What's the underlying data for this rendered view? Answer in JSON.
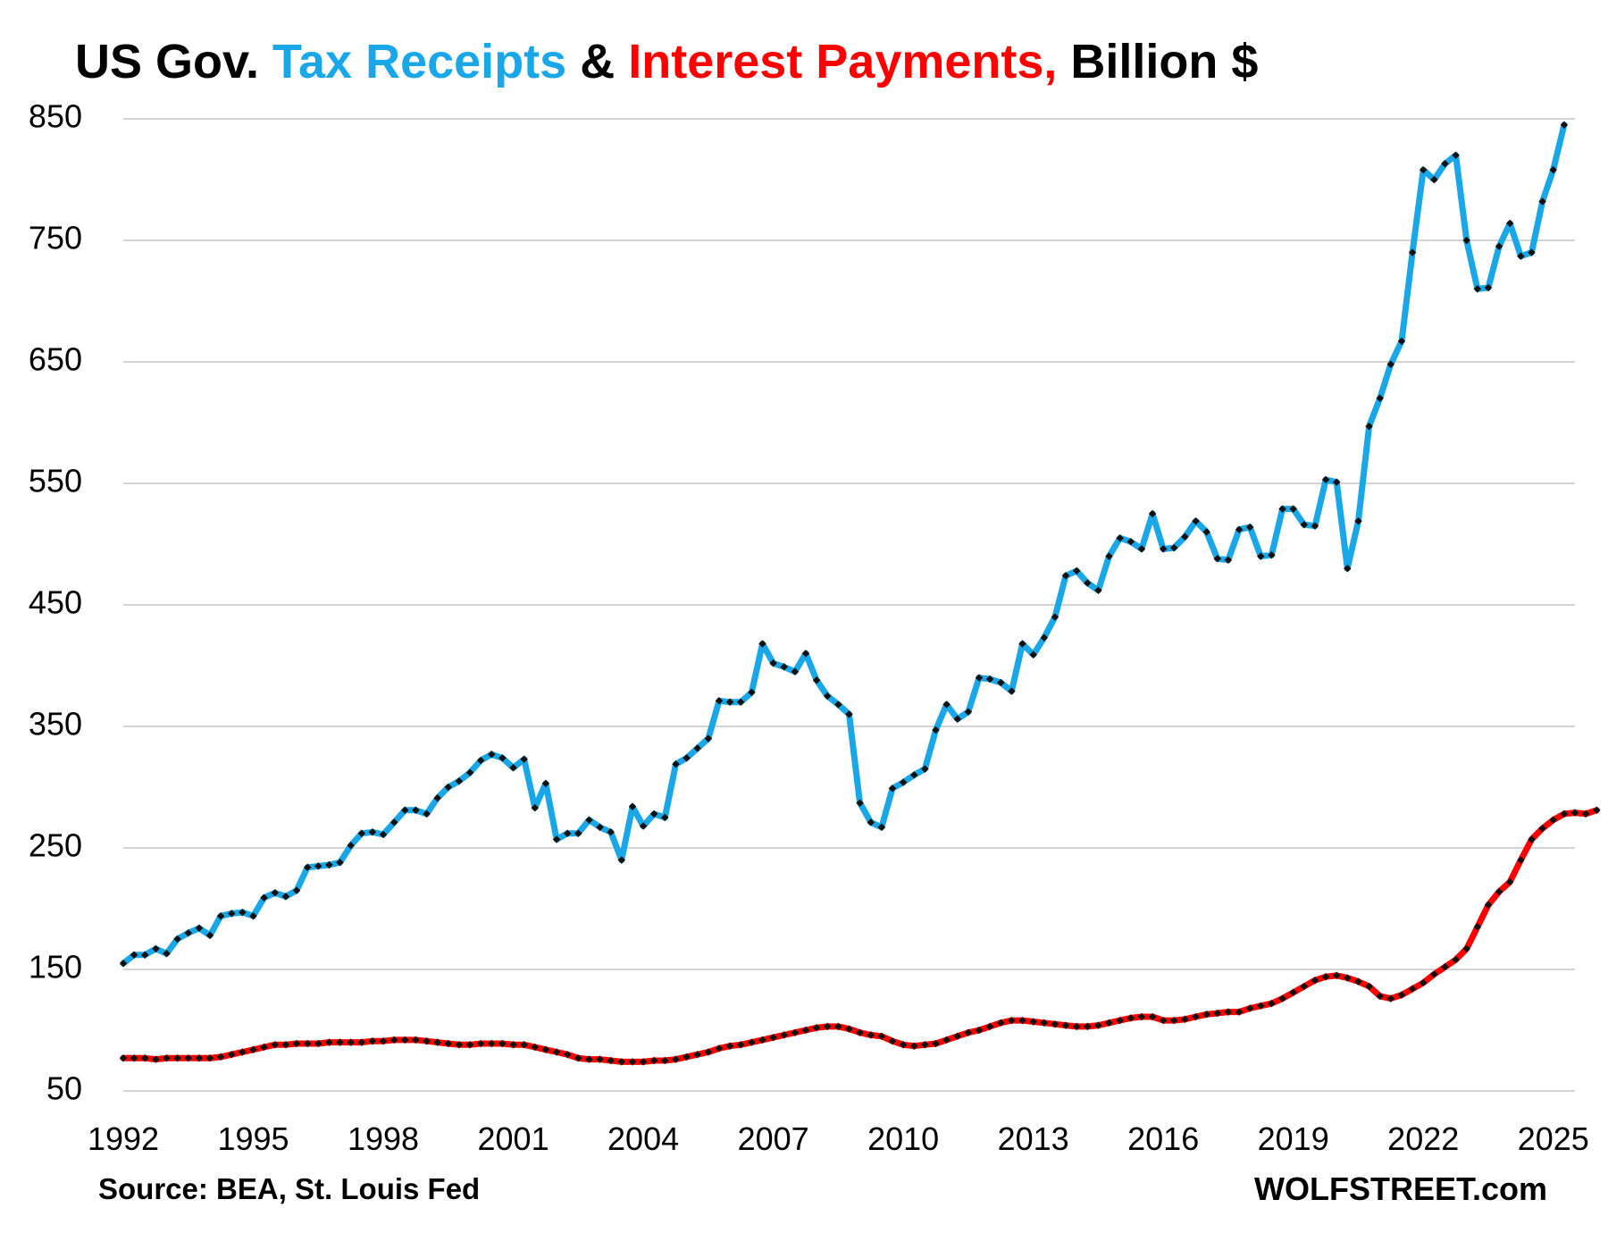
{
  "chart_data": {
    "type": "line",
    "title_parts": [
      {
        "text": "US Gov. ",
        "color": "#000000"
      },
      {
        "text": "Tax Receipts",
        "color": "#1AA7E8"
      },
      {
        "text": " & ",
        "color": "#000000"
      },
      {
        "text": "Interest Payments,",
        "color": "#FF0000"
      },
      {
        "text": " Billion $",
        "color": "#000000"
      }
    ],
    "xlabel": "",
    "ylabel": "",
    "ylim": [
      50,
      850
    ],
    "xlim": [
      1992.0,
      2025.5
    ],
    "yticks": [
      50,
      150,
      250,
      350,
      450,
      550,
      650,
      750,
      850
    ],
    "xticks": [
      1992,
      1995,
      1998,
      2001,
      2004,
      2007,
      2010,
      2013,
      2016,
      2019,
      2022,
      2025
    ],
    "grid": true,
    "legend": "none",
    "x_start": 1992.0,
    "x_step": 0.25,
    "series": [
      {
        "name": "Tax Receipts",
        "color": "#1AA7E8",
        "marker_color": "#111111",
        "values": [
          155,
          162,
          162,
          167,
          163,
          175,
          180,
          184,
          178,
          194,
          196,
          197,
          194,
          209,
          213,
          210,
          215,
          234,
          235,
          236,
          238,
          252,
          262,
          263,
          261,
          271,
          281,
          281,
          278,
          291,
          300,
          305,
          312,
          322,
          327,
          324,
          316,
          323,
          283,
          303,
          257,
          262,
          262,
          273,
          267,
          263,
          240,
          284,
          268,
          278,
          275,
          319,
          324,
          332,
          340,
          371,
          370,
          370,
          378,
          418,
          402,
          399,
          395,
          410,
          388,
          375,
          368,
          360,
          287,
          271,
          267,
          299,
          304,
          310,
          315,
          347,
          368,
          356,
          362,
          390,
          389,
          386,
          379,
          418,
          409,
          423,
          440,
          474,
          478,
          468,
          462,
          490,
          505,
          502,
          496,
          525,
          496,
          497,
          506,
          519,
          510,
          488,
          487,
          512,
          514,
          490,
          491,
          529,
          529,
          516,
          515,
          553,
          551,
          480,
          519,
          597,
          620,
          648,
          667,
          740,
          808,
          800,
          813,
          820,
          750,
          710,
          711,
          745,
          764,
          737,
          740,
          782,
          808,
          845
        ]
      },
      {
        "name": "Interest Payments",
        "color": "#FF0000",
        "marker_color": "#111111",
        "values": [
          77,
          77,
          77,
          76,
          77,
          77,
          77,
          77,
          77,
          78,
          80,
          82,
          84,
          86,
          88,
          88,
          89,
          89,
          89,
          90,
          90,
          90,
          90,
          91,
          91,
          92,
          92,
          92,
          91,
          90,
          89,
          88,
          88,
          89,
          89,
          89,
          88,
          88,
          86,
          84,
          82,
          80,
          77,
          76,
          76,
          75,
          74,
          74,
          74,
          75,
          75,
          76,
          78,
          80,
          82,
          85,
          87,
          88,
          90,
          92,
          94,
          96,
          98,
          100,
          102,
          103,
          103,
          101,
          98,
          96,
          95,
          91,
          88,
          87,
          88,
          89,
          92,
          95,
          98,
          100,
          103,
          106,
          108,
          108,
          107,
          106,
          105,
          104,
          103,
          103,
          104,
          106,
          108,
          110,
          111,
          111,
          108,
          108,
          109,
          111,
          113,
          114,
          115,
          115,
          118,
          120,
          122,
          126,
          131,
          136,
          141,
          144,
          145,
          143,
          140,
          136,
          128,
          126,
          129,
          134,
          139,
          146,
          152,
          158,
          167,
          185,
          203,
          214,
          222,
          240,
          257,
          266,
          273,
          278,
          279,
          278,
          281
        ]
      }
    ],
    "source": "Source: BEA, St. Louis Fed",
    "brand": "WOLFSTREET.com"
  }
}
